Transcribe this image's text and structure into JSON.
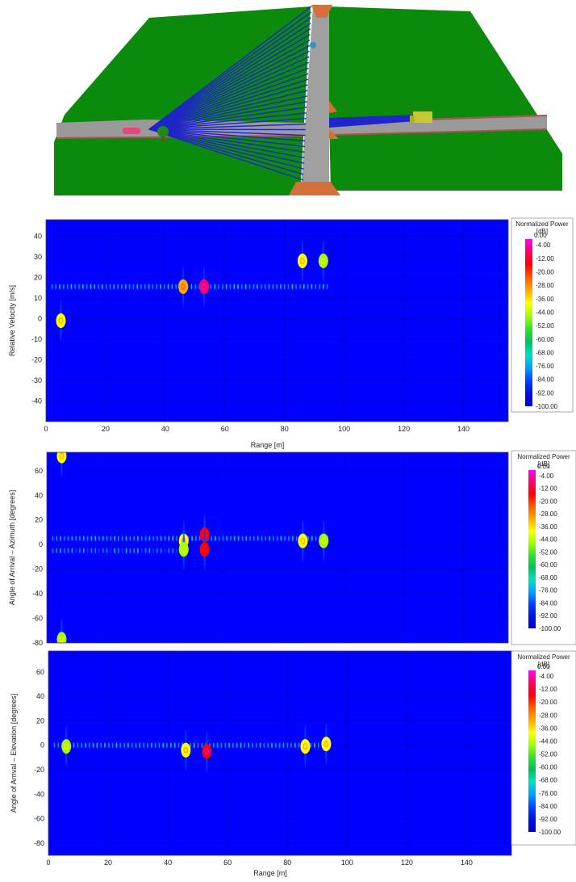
{
  "scene": {
    "description_colors": {
      "ground": "#0c8a0c",
      "road": "#9a9a9a",
      "rays": "#1f25c8",
      "ramp": "#d6703a",
      "car": "#e8467a",
      "truck": "#c8c832",
      "tree": "#1d8a1d"
    }
  },
  "colorbar": {
    "title_line1": "Normalized Power",
    "title_line2": "[dB]",
    "labels": [
      "0.00",
      "-4.00",
      "-12.00",
      "-20.00",
      "-28.00",
      "-36.00",
      "-44.00",
      "-52.00",
      "-60.00",
      "-68.00",
      "-76.00",
      "-84.00",
      "-92.00",
      "-100.00"
    ],
    "colors": [
      "#ff00ff",
      "#ff0060",
      "#ff0000",
      "#ff6000",
      "#ffaa00",
      "#ffff00",
      "#a0ff00",
      "#30e030",
      "#00c060",
      "#00e0c0",
      "#00a0ff",
      "#0040ff",
      "#0010e0",
      "#0000d0"
    ]
  },
  "chart_data": [
    {
      "type": "heatmap",
      "xlabel": "Range [m]",
      "ylabel": "Relative Velocity [m/s]",
      "xlim": [
        0,
        155
      ],
      "ylim": [
        -50,
        48
      ],
      "xticks": [
        0,
        20,
        40,
        60,
        80,
        100,
        120,
        140
      ],
      "yticks": [
        40,
        30,
        20,
        10,
        0,
        -10,
        -20,
        -30,
        -40
      ],
      "background": "#0000ff",
      "hotspots": [
        {
          "x": 5,
          "y": -1,
          "peak_db": -30
        },
        {
          "x": 46,
          "y": 15.5,
          "peak_db": -28
        },
        {
          "x": 53,
          "y": 15.5,
          "peak_db": -4
        },
        {
          "x": 86,
          "y": 28,
          "peak_db": -36
        },
        {
          "x": 93,
          "y": 28,
          "peak_db": -40
        }
      ],
      "streaks": [
        {
          "y": 15.5,
          "x_from": 2,
          "x_to": 95,
          "level_db": -70
        }
      ]
    },
    {
      "type": "heatmap",
      "xlabel": "",
      "ylabel": "Angle of Arrival – Azimuth [degrees]",
      "xlim": [
        0,
        155
      ],
      "ylim": [
        -80,
        75
      ],
      "xticks": [
        0,
        20,
        40,
        60,
        80,
        100,
        120,
        140
      ],
      "yticks": [
        60,
        40,
        20,
        0,
        -20,
        -40,
        -60,
        -80
      ],
      "background": "#0000ff",
      "hotspots": [
        {
          "x": 5,
          "y": 72,
          "peak_db": -36
        },
        {
          "x": 5,
          "y": -77,
          "peak_db": -44
        },
        {
          "x": 46,
          "y": 3,
          "peak_db": -36
        },
        {
          "x": 46,
          "y": -4,
          "peak_db": -40
        },
        {
          "x": 53,
          "y": 8,
          "peak_db": -12
        },
        {
          "x": 53,
          "y": -4,
          "peak_db": -12
        },
        {
          "x": 86,
          "y": 3,
          "peak_db": -36
        },
        {
          "x": 93,
          "y": 3,
          "peak_db": -40
        }
      ],
      "streaks": [
        {
          "y": 5,
          "x_from": 2,
          "x_to": 95,
          "level_db": -70
        },
        {
          "y": -5,
          "x_from": 2,
          "x_to": 45,
          "level_db": -72
        }
      ]
    },
    {
      "type": "heatmap",
      "xlabel": "Range [m]",
      "ylabel": "Angle of Arrival – Elevation [degrees]",
      "xlim": [
        0,
        155
      ],
      "ylim": [
        -90,
        77
      ],
      "xticks": [
        0,
        20,
        40,
        60,
        80,
        100,
        120,
        140
      ],
      "yticks": [
        60,
        40,
        20,
        0,
        -20,
        -40,
        -60,
        -80
      ],
      "background": "#0000ff",
      "hotspots": [
        {
          "x": 6,
          "y": -1,
          "peak_db": -40
        },
        {
          "x": 46,
          "y": -4,
          "peak_db": -32
        },
        {
          "x": 53,
          "y": -5,
          "peak_db": -8
        },
        {
          "x": 86,
          "y": -1,
          "peak_db": -36
        },
        {
          "x": 93,
          "y": 1,
          "peak_db": -36
        }
      ],
      "streaks": [
        {
          "y": 0,
          "x_from": 2,
          "x_to": 95,
          "level_db": -70
        }
      ]
    }
  ]
}
